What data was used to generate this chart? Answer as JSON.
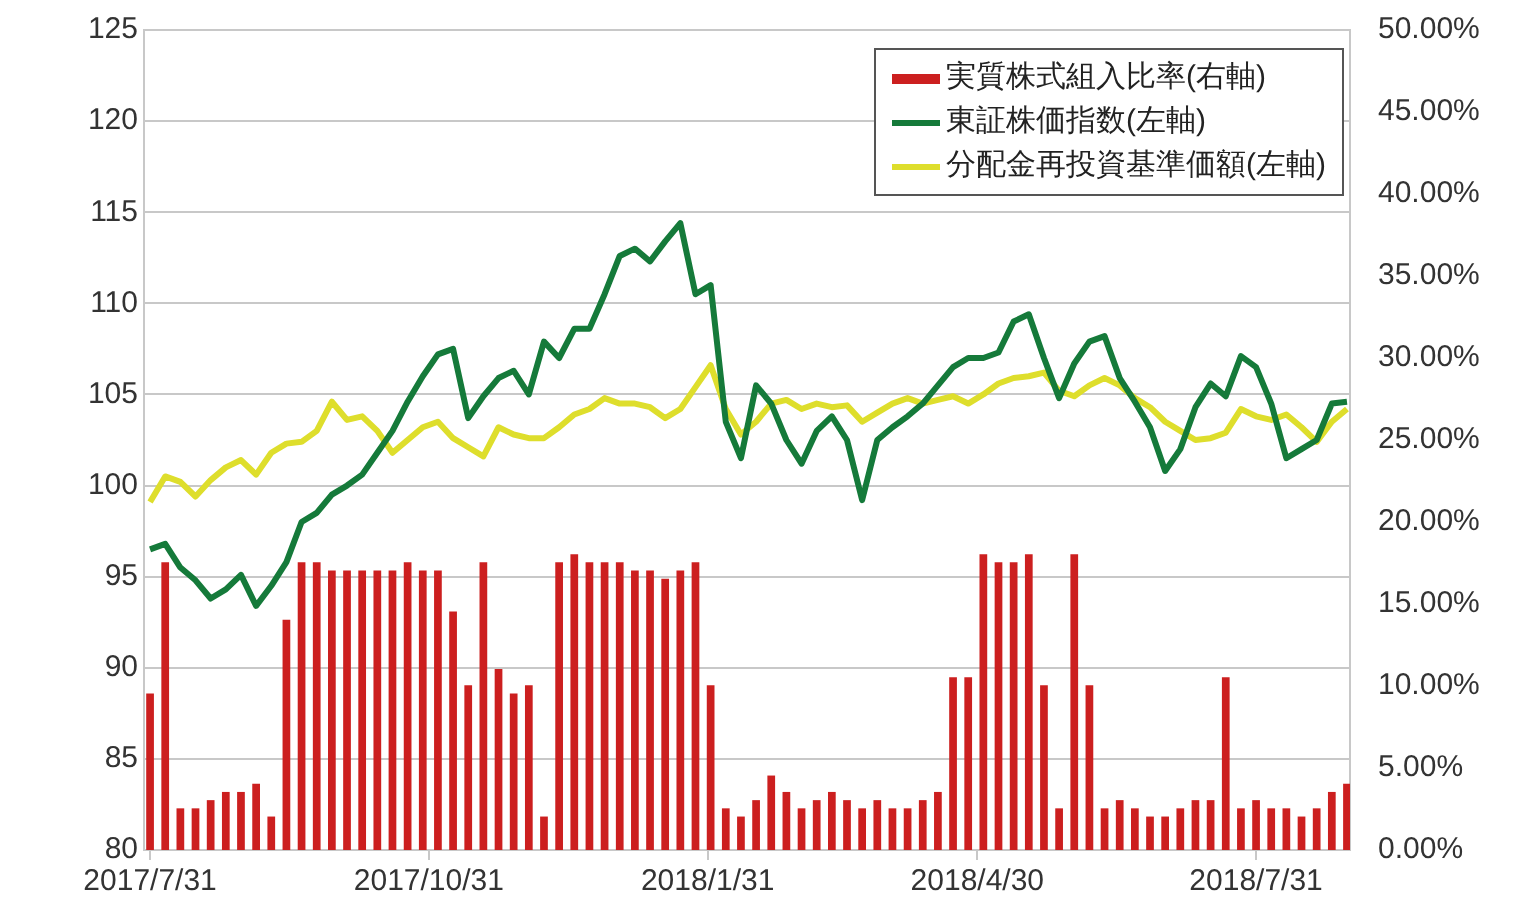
{
  "chart_data": {
    "type": "line",
    "x": [
      "2017-07-31",
      "2017-08-05",
      "2017-08-10",
      "2017-08-15",
      "2017-08-20",
      "2017-08-25",
      "2017-08-30",
      "2017-09-04",
      "2017-09-09",
      "2017-09-14",
      "2017-09-19",
      "2017-09-24",
      "2017-09-29",
      "2017-10-04",
      "2017-10-09",
      "2017-10-14",
      "2017-10-19",
      "2017-10-24",
      "2017-10-29",
      "2017-11-03",
      "2017-11-08",
      "2017-11-13",
      "2017-11-18",
      "2017-11-23",
      "2017-11-28",
      "2017-12-03",
      "2017-12-08",
      "2017-12-13",
      "2017-12-18",
      "2017-12-23",
      "2017-12-28",
      "2018-01-02",
      "2018-01-07",
      "2018-01-12",
      "2018-01-17",
      "2018-01-22",
      "2018-01-27",
      "2018-02-01",
      "2018-02-06",
      "2018-02-11",
      "2018-02-16",
      "2018-02-21",
      "2018-02-26",
      "2018-03-03",
      "2018-03-08",
      "2018-03-13",
      "2018-03-18",
      "2018-03-23",
      "2018-03-28",
      "2018-04-02",
      "2018-04-07",
      "2018-04-12",
      "2018-04-17",
      "2018-04-22",
      "2018-04-27",
      "2018-05-02",
      "2018-05-07",
      "2018-05-12",
      "2018-05-17",
      "2018-05-22",
      "2018-05-27",
      "2018-06-01",
      "2018-06-06",
      "2018-06-11",
      "2018-06-16",
      "2018-06-21",
      "2018-06-26",
      "2018-07-01",
      "2018-07-06",
      "2018-07-11",
      "2018-07-16",
      "2018-07-21",
      "2018-07-26",
      "2018-07-31",
      "2018-08-05",
      "2018-08-10",
      "2018-08-15",
      "2018-08-20",
      "2018-08-25",
      "2018-08-30"
    ],
    "series": [
      {
        "name": "実質株式組入比率(右軸)",
        "type": "bar",
        "axis": "y2",
        "color": "#cc1f1f",
        "values": [
          9.5,
          17.5,
          2.5,
          2.5,
          3.0,
          3.5,
          3.5,
          4.0,
          2.0,
          14.0,
          17.5,
          17.5,
          17.0,
          17.0,
          17.0,
          17.0,
          17.0,
          17.5,
          17.0,
          17.0,
          14.5,
          10.0,
          17.5,
          11.0,
          9.5,
          10.0,
          2.0,
          17.5,
          18.0,
          17.5,
          17.5,
          17.5,
          17.0,
          17.0,
          16.5,
          17.0,
          17.5,
          10.0,
          2.5,
          2.0,
          3.0,
          4.5,
          3.5,
          2.5,
          3.0,
          3.5,
          3.0,
          2.5,
          3.0,
          2.5,
          2.5,
          3.0,
          3.5,
          10.5,
          10.5,
          18.0,
          17.5,
          17.5,
          18.0,
          10.0,
          2.5,
          18.0,
          10.0,
          2.5,
          3.0,
          2.5,
          2.0,
          2.0,
          2.5,
          3.0,
          3.0,
          10.5,
          2.5,
          3.0,
          2.5,
          2.5,
          2.0,
          2.5,
          3.5,
          4.0
        ]
      },
      {
        "name": "東証株価指数(左軸)",
        "color": "#157a3a",
        "values": [
          96.5,
          96.8,
          95.5,
          94.8,
          93.8,
          94.3,
          95.1,
          93.4,
          94.5,
          95.8,
          98.0,
          98.5,
          99.5,
          100.0,
          100.6,
          101.8,
          103.0,
          104.6,
          106.0,
          107.2,
          107.5,
          103.7,
          104.9,
          105.9,
          106.3,
          105.0,
          107.9,
          107.0,
          108.6,
          108.6,
          110.5,
          112.6,
          113.0,
          112.3,
          113.4,
          114.4,
          110.5,
          111.0,
          103.5,
          101.5,
          105.5,
          104.5,
          102.5,
          101.2,
          103.0,
          103.8,
          102.5,
          99.2,
          102.5,
          103.2,
          103.8,
          104.5,
          105.5,
          106.5,
          107.0,
          107.0,
          107.3,
          109.0,
          109.4,
          107.0,
          104.8,
          106.7,
          107.9,
          108.2,
          105.9,
          104.6,
          103.2,
          100.8,
          102.0,
          104.3,
          105.6,
          104.9,
          107.1,
          106.5,
          104.5,
          101.5,
          102.0,
          102.5,
          104.5,
          104.6
        ]
      },
      {
        "name": "分配金再投資基準価額(左軸)",
        "color": "#dede2c",
        "values": [
          99.1,
          100.5,
          100.2,
          99.4,
          100.3,
          101.0,
          101.4,
          100.6,
          101.8,
          102.3,
          102.4,
          103.0,
          104.6,
          103.6,
          103.8,
          103.0,
          101.8,
          102.5,
          103.2,
          103.5,
          102.6,
          102.1,
          101.6,
          103.2,
          102.8,
          102.6,
          102.6,
          103.2,
          103.9,
          104.2,
          104.8,
          104.5,
          104.5,
          104.3,
          103.7,
          104.2,
          105.4,
          106.6,
          104.2,
          102.8,
          103.5,
          104.5,
          104.7,
          104.2,
          104.5,
          104.3,
          104.4,
          103.5,
          104.0,
          104.5,
          104.8,
          104.5,
          104.7,
          104.9,
          104.5,
          105.0,
          105.6,
          105.9,
          106.0,
          106.2,
          105.2,
          104.9,
          105.5,
          105.9,
          105.5,
          104.8,
          104.3,
          103.5,
          103.0,
          102.5,
          102.6,
          102.9,
          104.2,
          103.8,
          103.6,
          103.9,
          103.2,
          102.4,
          103.5,
          104.2
        ]
      }
    ],
    "xlim": [
      "2017-07-29",
      "2018-08-31"
    ],
    "xticks": [
      {
        "value": "2017-07-31",
        "label": "2017/7/31"
      },
      {
        "value": "2017-10-31",
        "label": "2017/10/31"
      },
      {
        "value": "2018-01-31",
        "label": "2018/1/31"
      },
      {
        "value": "2018-04-30",
        "label": "2018/4/30"
      },
      {
        "value": "2018-07-31",
        "label": "2018/7/31"
      }
    ],
    "ylim": [
      80,
      125
    ],
    "yticks": [
      80,
      85,
      90,
      95,
      100,
      105,
      110,
      115,
      120,
      125
    ],
    "y2lim": [
      0,
      50
    ],
    "y2ticks": [
      {
        "value": 0,
        "label": "0.00%"
      },
      {
        "value": 5,
        "label": "5.00%"
      },
      {
        "value": 10,
        "label": "10.00%"
      },
      {
        "value": 15,
        "label": "15.00%"
      },
      {
        "value": 20,
        "label": "20.00%"
      },
      {
        "value": 25,
        "label": "25.00%"
      },
      {
        "value": 30,
        "label": "30.00%"
      },
      {
        "value": 35,
        "label": "35.00%"
      },
      {
        "value": 40,
        "label": "40.00%"
      },
      {
        "value": 45,
        "label": "45.00%"
      },
      {
        "value": 50,
        "label": "50.00%"
      }
    ],
    "grid": "y",
    "legend": "top right"
  }
}
